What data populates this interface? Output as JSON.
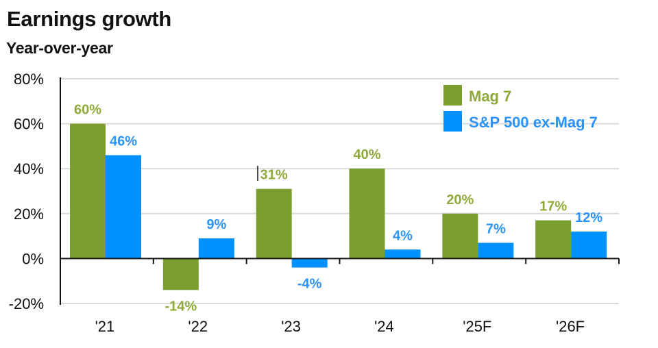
{
  "header": {
    "title": "Earnings growth",
    "subtitle": "Year-over-year"
  },
  "colors": {
    "mag7": "#7a9e2e",
    "sp500_ex_mag7": "#0091ff",
    "gridline": "#d9d9d9",
    "axis": "#111111",
    "mag7_label": "#8fa93a",
    "sp500_label": "#2b93f5"
  },
  "chart_data": {
    "type": "bar",
    "title": "Earnings growth",
    "subtitle": "Year-over-year",
    "xlabel": "",
    "ylabel": "",
    "categories": [
      "'21",
      "'22",
      "'23",
      "'24",
      "'25F",
      "'26F"
    ],
    "series": [
      {
        "name": "Mag 7",
        "values": [
          60,
          -14,
          31,
          40,
          20,
          17
        ],
        "labels": [
          "60%",
          "-14%",
          "31%",
          "40%",
          "20%",
          "17%"
        ]
      },
      {
        "name": "S&P 500 ex-Mag 7",
        "values": [
          46,
          9,
          -4,
          4,
          7,
          12
        ],
        "labels": [
          "46%",
          "9%",
          "-4%",
          "4%",
          "7%",
          "12%"
        ]
      }
    ],
    "ylim": [
      -20,
      80
    ],
    "yticks": [
      80,
      60,
      40,
      20,
      0,
      -20
    ],
    "ytick_labels": [
      "80%",
      "60%",
      "40%",
      "20%",
      "0%",
      "-20%"
    ],
    "grid": true,
    "legend": {
      "position": "top-right",
      "entries": [
        "Mag 7",
        "S&P 500 ex-Mag 7"
      ]
    },
    "value_format": "percent"
  }
}
